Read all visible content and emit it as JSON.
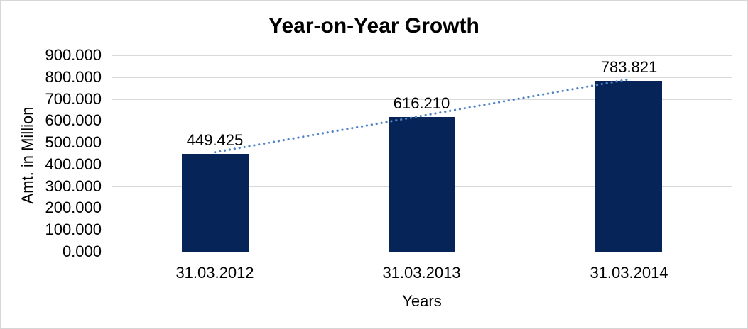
{
  "chart": {
    "title": "Year-on-Year Growth",
    "y_axis_title": "Amt. in Million",
    "x_axis_title": "Years"
  },
  "chart_data": {
    "type": "bar",
    "title": "Year-on-Year Growth",
    "xlabel": "Years",
    "ylabel": "Amt. in Million",
    "categories": [
      "31.03.2012",
      "31.03.2013",
      "31.03.2014"
    ],
    "values": [
      449.425,
      616.21,
      783.821
    ],
    "data_labels": [
      "449.425",
      "616.210",
      "783.821"
    ],
    "y_ticks": [
      "0.000",
      "100.000",
      "200.000",
      "300.000",
      "400.000",
      "500.000",
      "600.000",
      "700.000",
      "800.000",
      "900.000"
    ],
    "ylim": [
      0,
      900
    ],
    "grid": true,
    "legend": "none",
    "trendline": {
      "type": "linear-dotted",
      "through_bar_tops": true
    },
    "colors": {
      "bar": "#072459",
      "trendline": "#4e82c6",
      "gridline": "#d9d9d9",
      "text": "#000000",
      "frame": "#d6d6d6",
      "background": "#ffffff"
    }
  }
}
